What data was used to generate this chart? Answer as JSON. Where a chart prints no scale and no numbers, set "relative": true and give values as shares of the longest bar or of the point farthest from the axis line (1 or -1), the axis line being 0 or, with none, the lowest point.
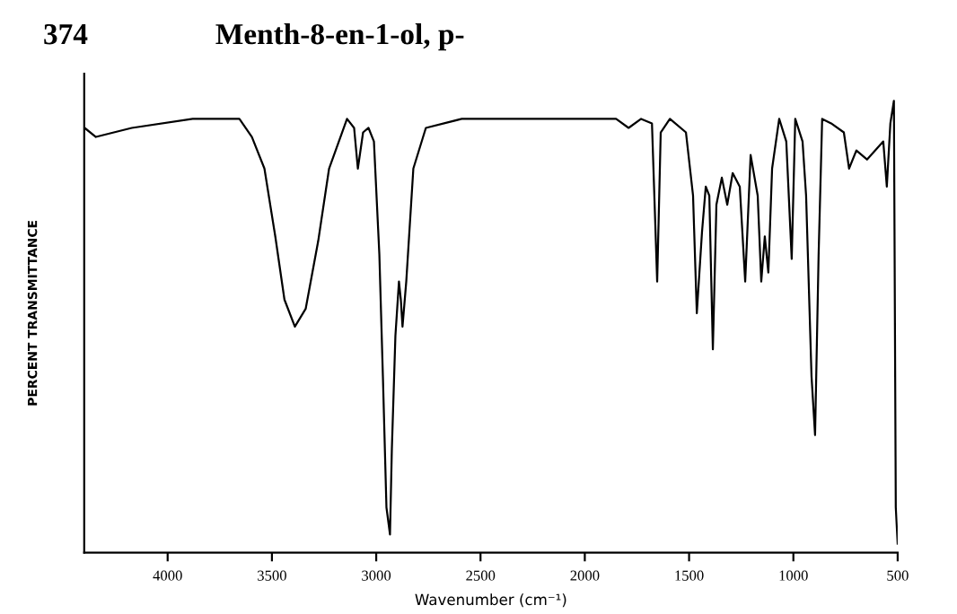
{
  "chart_data": {
    "type": "line",
    "title": "Menth-8-en-1-ol, p-",
    "annotations": [
      "374"
    ],
    "xlabel": "Wavenumber (cm⁻¹)",
    "ylabel": "PERCENT TRANSMITTANCE",
    "relative": true,
    "xlim": [
      4400,
      500
    ],
    "xticks": [
      4000,
      3500,
      3000,
      2500,
      2000,
      1500,
      1000,
      500
    ],
    "grid": false,
    "legend": false,
    "marker": "none",
    "line_style": "solid",
    "series": [
      {
        "color": "#000000",
        "x": [
          4398,
          4344,
          4172,
          3880,
          3656,
          3596,
          3536,
          3484,
          3440,
          3390,
          3338,
          3278,
          3226,
          3140,
          3106,
          3088,
          3063,
          3037,
          3011,
          2985,
          2968,
          2951,
          2934,
          2925,
          2908,
          2891,
          2882,
          2874,
          2856,
          2822,
          2762,
          2590,
          2478,
          2332,
          2194,
          1850,
          1790,
          1730,
          1678,
          1653,
          1636,
          1592,
          1515,
          1481,
          1463,
          1438,
          1420,
          1403,
          1386,
          1369,
          1343,
          1317,
          1291,
          1257,
          1231,
          1205,
          1171,
          1154,
          1137,
          1120,
          1102,
          1068,
          1034,
          1008,
          991,
          956,
          939,
          913,
          896,
          879,
          862,
          819,
          758,
          733,
          698,
          647,
          569,
          552,
          535,
          518,
          509,
          500
        ],
        "values": [
          0.94,
          0.92,
          0.94,
          0.96,
          0.96,
          0.92,
          0.85,
          0.7,
          0.56,
          0.5,
          0.54,
          0.69,
          0.85,
          0.96,
          0.94,
          0.85,
          0.93,
          0.94,
          0.91,
          0.66,
          0.39,
          0.1,
          0.04,
          0.23,
          0.48,
          0.6,
          0.56,
          0.5,
          0.6,
          0.85,
          0.94,
          0.96,
          0.96,
          0.96,
          0.96,
          0.96,
          0.94,
          0.96,
          0.95,
          0.6,
          0.93,
          0.96,
          0.93,
          0.79,
          0.53,
          0.71,
          0.81,
          0.79,
          0.45,
          0.77,
          0.83,
          0.77,
          0.84,
          0.81,
          0.6,
          0.88,
          0.79,
          0.6,
          0.7,
          0.62,
          0.85,
          0.96,
          0.91,
          0.65,
          0.96,
          0.91,
          0.79,
          0.39,
          0.26,
          0.66,
          0.96,
          0.95,
          0.93,
          0.85,
          0.89,
          0.87,
          0.91,
          0.81,
          0.95,
          1.0,
          0.1,
          0.02
        ]
      }
    ]
  }
}
